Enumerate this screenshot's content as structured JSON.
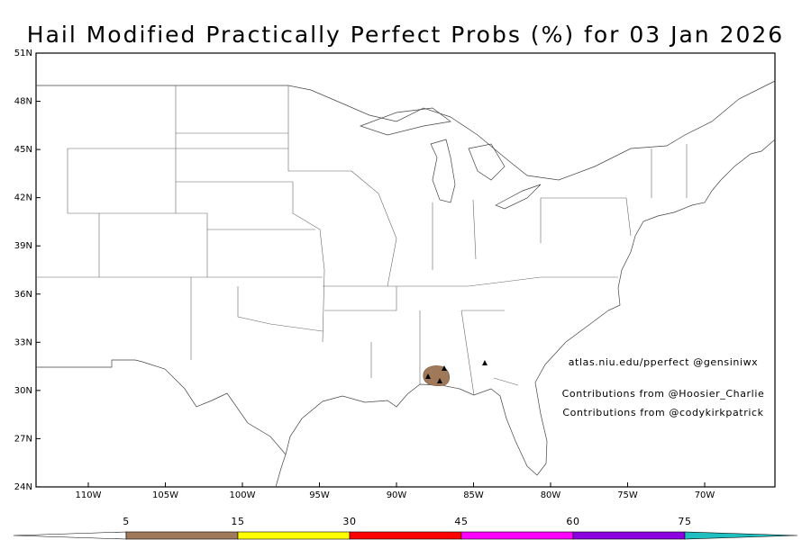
{
  "map": {
    "title": "Hail Modified Practically Perfect Probs (%) for 03 Jan 2026",
    "lat_ticks": [
      {
        "value": 51,
        "label": "51N"
      },
      {
        "value": 48,
        "label": "48N"
      },
      {
        "value": 45,
        "label": "45N"
      },
      {
        "value": 42,
        "label": "42N"
      },
      {
        "value": 39,
        "label": "39N"
      },
      {
        "value": 36,
        "label": "36N"
      },
      {
        "value": 33,
        "label": "33N"
      },
      {
        "value": 30,
        "label": "30N"
      },
      {
        "value": 27,
        "label": "27N"
      },
      {
        "value": 24,
        "label": "24N"
      }
    ],
    "lon_ticks": [
      {
        "value": -110,
        "label": "110W"
      },
      {
        "value": -105,
        "label": "105W"
      },
      {
        "value": -100,
        "label": "100W"
      },
      {
        "value": -95,
        "label": "95W"
      },
      {
        "value": -90,
        "label": "90W"
      },
      {
        "value": -85,
        "label": "85W"
      },
      {
        "value": -80,
        "label": "80W"
      },
      {
        "value": -75,
        "label": "75W"
      },
      {
        "value": -70,
        "label": "70W"
      }
    ],
    "annotations": [
      "atlas.niu.edu/pperfect @gensiniwx",
      "Contributions from @Hoosier_Charlie",
      "Contributions from @codykirkpatrick"
    ],
    "colorbar": {
      "levels": [
        5,
        15,
        30,
        45,
        60,
        75
      ],
      "colors": [
        "#ffffff",
        "#a0785a",
        "#ffff00",
        "#ff0000",
        "#ff00ff",
        "#8a00e0",
        "#20c0c0"
      ]
    }
  }
}
